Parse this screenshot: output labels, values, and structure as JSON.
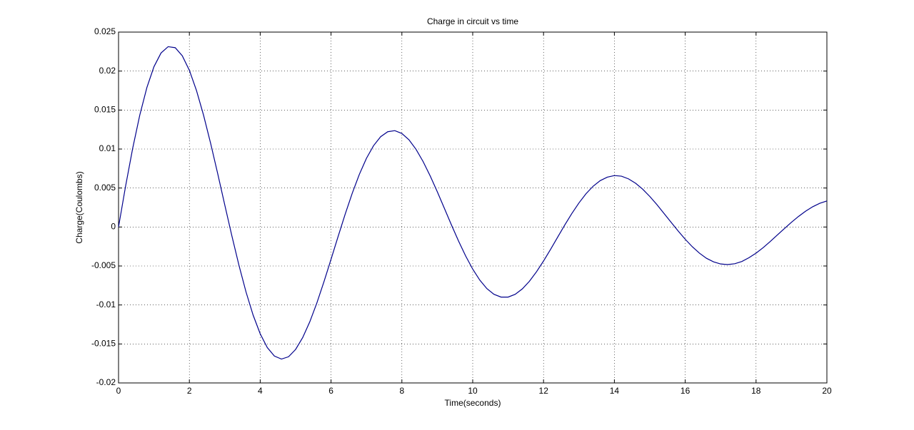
{
  "chart_data": {
    "type": "line",
    "title": "Charge in circuit vs time",
    "xlabel": "Time(seconds)",
    "ylabel": "Charge(Coulombs)",
    "color": "#00008b",
    "grid": true,
    "xlim": [
      0,
      20
    ],
    "xticks": [
      0,
      2,
      4,
      6,
      8,
      10,
      12,
      14,
      16,
      18,
      20
    ],
    "ylim": [
      -0.02,
      0.025
    ],
    "yticks": [
      -0.02,
      -0.015,
      -0.01,
      -0.005,
      0,
      0.005,
      0.01,
      0.015,
      0.02,
      0.025
    ],
    "x": [
      0,
      0.2,
      0.4,
      0.6,
      0.8,
      1,
      1.2,
      1.4,
      1.6,
      1.8,
      2,
      2.2,
      2.4,
      2.6,
      2.8,
      3,
      3.2,
      3.4,
      3.6,
      3.8,
      4,
      4.2,
      4.4,
      4.6,
      4.8,
      5,
      5.2,
      5.4,
      5.6,
      5.8,
      6,
      6.2,
      6.4,
      6.6,
      6.8,
      7,
      7.2,
      7.4,
      7.6,
      7.8,
      8,
      8.2,
      8.4,
      8.6,
      8.8,
      9,
      9.2,
      9.4,
      9.6,
      9.8,
      10,
      10.2,
      10.4,
      10.6,
      10.8,
      11,
      11.2,
      11.4,
      11.6,
      11.8,
      12,
      12.2,
      12.4,
      12.6,
      12.8,
      13,
      13.2,
      13.4,
      13.6,
      13.8,
      14,
      14.2,
      14.4,
      14.6,
      14.8,
      15,
      15.2,
      15.4,
      15.6,
      15.8,
      16,
      16.2,
      16.4,
      16.6,
      16.8,
      17,
      17.2,
      17.4,
      17.6,
      17.8,
      18,
      18.2,
      18.4,
      18.6,
      18.8,
      19,
      19.2,
      19.4,
      19.6,
      19.8,
      20
    ],
    "values": [
      0,
      0.00526,
      0.0101,
      0.01436,
      0.01788,
      0.02056,
      0.02232,
      0.02313,
      0.023,
      0.02196,
      0.0201,
      0.01752,
      0.01435,
      0.01073,
      0.00684,
      0.00282,
      -0.00114,
      -0.00491,
      -0.00834,
      -0.0113,
      -0.0137,
      -0.01546,
      -0.01655,
      -0.01694,
      -0.01664,
      -0.0157,
      -0.01418,
      -0.01216,
      -0.00974,
      -0.00702,
      -0.00414,
      -0.00121,
      0.00166,
      0.00435,
      0.00676,
      0.00881,
      0.01043,
      0.01158,
      0.01222,
      0.01236,
      0.012,
      0.01119,
      0.00996,
      0.00839,
      0.00655,
      0.00452,
      0.0024,
      0.00026,
      -0.0018,
      -0.00371,
      -0.0054,
      -0.00681,
      -0.0079,
      -0.00863,
      -0.00899,
      -0.00899,
      -0.00863,
      -0.00794,
      -0.00697,
      -0.00575,
      -0.00436,
      -0.00286,
      -0.00129,
      0.00026,
      0.00174,
      0.00309,
      0.00427,
      0.00523,
      0.00595,
      0.00639,
      0.0066,
      0.00652,
      0.00617,
      0.00561,
      0.00485,
      0.00392,
      0.00288,
      0.00175,
      0.00061,
      -0.00051,
      -0.00157,
      -0.00253,
      -0.00335,
      -0.00401,
      -0.00447,
      -0.00474,
      -0.00482,
      -0.00471,
      -0.00442,
      -0.00394,
      -0.00335,
      -0.00265,
      -0.00186,
      -0.00103,
      -0.0002,
      0.00061,
      0.00136,
      0.00203,
      0.0026,
      0.00304,
      0.00334
    ]
  }
}
